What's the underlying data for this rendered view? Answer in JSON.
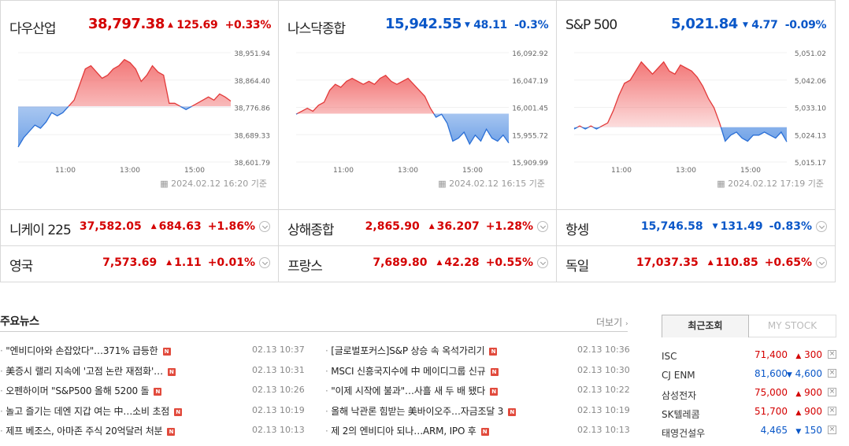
{
  "panels": [
    {
      "name": "다우산업",
      "value": "38,797.38",
      "arrow": "▲",
      "change": "125.69",
      "pct": "+0.33%",
      "dir": "up",
      "time": "2024.02.12 16:20 기준",
      "yticks": [
        "38,951.94",
        "38,864.40",
        "38,776.86",
        "38,689.33",
        "38,601.79"
      ],
      "xticks": [
        "11:00",
        "13:00",
        "15:00"
      ],
      "chart_data": {
        "type": "area",
        "ylim": [
          38601.79,
          38951.94
        ],
        "baseline": 38780,
        "points": [
          38650,
          38680,
          38700,
          38720,
          38710,
          38730,
          38760,
          38750,
          38760,
          38780,
          38800,
          38850,
          38900,
          38910,
          38890,
          38870,
          38880,
          38900,
          38910,
          38930,
          38920,
          38900,
          38860,
          38880,
          38910,
          38890,
          38880,
          38790,
          38790,
          38780,
          38770,
          38780,
          38790,
          38800,
          38810,
          38800,
          38820,
          38810,
          38797
        ]
      }
    },
    {
      "name": "나스닥종합",
      "value": "15,942.55",
      "arrow": "▼",
      "change": "48.11",
      "pct": "-0.3%",
      "dir": "down",
      "time": "2024.02.12 16:15 기준",
      "yticks": [
        "16,092.92",
        "16,047.19",
        "16,001.45",
        "15,955.72",
        "15,909.99"
      ],
      "xticks": [
        "11:00",
        "13:00",
        "15:00"
      ],
      "chart_data": {
        "type": "area",
        "ylim": [
          15909.99,
          16092.92
        ],
        "baseline": 15991,
        "points": [
          15990,
          15995,
          16000,
          15995,
          16005,
          16010,
          16030,
          16040,
          16035,
          16045,
          16050,
          16045,
          16040,
          16045,
          16040,
          16050,
          16055,
          16045,
          16040,
          16045,
          16050,
          16040,
          16030,
          16020,
          16000,
          15985,
          15990,
          15975,
          15945,
          15950,
          15960,
          15940,
          15955,
          15945,
          15965,
          15950,
          15945,
          15955,
          15942
        ]
      }
    },
    {
      "name": "S&P 500",
      "value": "5,021.84",
      "arrow": "▼",
      "change": "4.77",
      "pct": "-0.09%",
      "dir": "down",
      "time": "2024.02.12 17:19 기준",
      "yticks": [
        "5,051.02",
        "5,042.06",
        "5,033.10",
        "5,024.13",
        "5,015.17"
      ],
      "xticks": [
        "11:00",
        "13:00",
        "15:00"
      ],
      "chart_data": {
        "type": "area",
        "ylim": [
          5015.17,
          5051.02
        ],
        "baseline": 5026.6,
        "points": [
          5026,
          5027,
          5026,
          5027,
          5026,
          5027,
          5028,
          5032,
          5037,
          5041,
          5042,
          5045,
          5048,
          5046,
          5044,
          5046,
          5048,
          5045,
          5044,
          5047,
          5046,
          5045,
          5043,
          5040,
          5036,
          5033,
          5028,
          5022,
          5024,
          5025,
          5023,
          5022,
          5024,
          5024,
          5025,
          5024,
          5023,
          5025,
          5021.8
        ]
      }
    }
  ],
  "indices": [
    {
      "name": "니케이 225",
      "value": "37,582.05",
      "arrow": "▲",
      "change": "684.63",
      "pct": "+1.86%",
      "dir": "up"
    },
    {
      "name": "상해종합",
      "value": "2,865.90",
      "arrow": "▲",
      "change": "36.207",
      "pct": "+1.28%",
      "dir": "up"
    },
    {
      "name": "항셍",
      "value": "15,746.58",
      "arrow": "▼",
      "change": "131.49",
      "pct": "-0.83%",
      "dir": "down"
    },
    {
      "name": "영국",
      "value": "7,573.69",
      "arrow": "▲",
      "change": "1.11",
      "pct": "+0.01%",
      "dir": "up"
    },
    {
      "name": "프랑스",
      "value": "7,689.80",
      "arrow": "▲",
      "change": "42.28",
      "pct": "+0.55%",
      "dir": "up"
    },
    {
      "name": "독일",
      "value": "17,037.35",
      "arrow": "▲",
      "change": "110.85",
      "pct": "+0.65%",
      "dir": "up"
    }
  ],
  "news": {
    "title": "주요뉴스",
    "more": "더보기",
    "left": [
      {
        "text": "\"엔비디아와 손잡았다\"…371% 급등한",
        "time": "02.13 10:37"
      },
      {
        "text": "美증시 랠리 지속에 '고점 논란 재점화'…",
        "time": "02.13 10:31"
      },
      {
        "text": "오펜하이머 \"S&P500 올해 5200 돌",
        "time": "02.13 10:26"
      },
      {
        "text": "놀고 즐기는 데엔 지갑 여는 中…소비 초점",
        "time": "02.13 10:19"
      },
      {
        "text": "제프 베조스, 아마존 주식 20억달러 처분",
        "time": "02.13 10:13"
      }
    ],
    "right": [
      {
        "text": "[글로벌포커스]S&P 상승 속 옥석가리기",
        "time": "02.13 10:36"
      },
      {
        "text": "MSCI 신흥국지수에 中 메이디그룹 신규",
        "time": "02.13 10:30"
      },
      {
        "text": "\"이제 시작에 불과\"…사흘 새 두 배 됐다",
        "time": "02.13 10:22"
      },
      {
        "text": "올해 낙관론 힘받는 美바이오주…자금조달 3",
        "time": "02.13 10:19"
      },
      {
        "text": "제 2의 엔비디아 되나…ARM, IPO 후",
        "time": "02.13 10:13"
      }
    ]
  },
  "recent": {
    "tab_recent": "최근조회",
    "tab_mystock": "MY STOCK",
    "items": [
      {
        "name": "ISC",
        "price": "71,400",
        "arrow": "▲",
        "change": "300",
        "dir": "up"
      },
      {
        "name": "CJ ENM",
        "price": "81,600",
        "arrow": "▼",
        "change": "4,600",
        "dir": "down"
      },
      {
        "name": "삼성전자",
        "price": "75,000",
        "arrow": "▲",
        "change": "900",
        "dir": "up"
      },
      {
        "name": "SK텔레콤",
        "price": "51,700",
        "arrow": "▲",
        "change": "900",
        "dir": "up"
      },
      {
        "name": "태영건설우",
        "price": "4,465",
        "arrow": "▼",
        "change": "150",
        "dir": "down"
      }
    ]
  },
  "colors": {
    "up": "#d40000",
    "down": "#0a57c8",
    "up_fill": "#f27070",
    "down_fill": "#6a9ee6"
  }
}
